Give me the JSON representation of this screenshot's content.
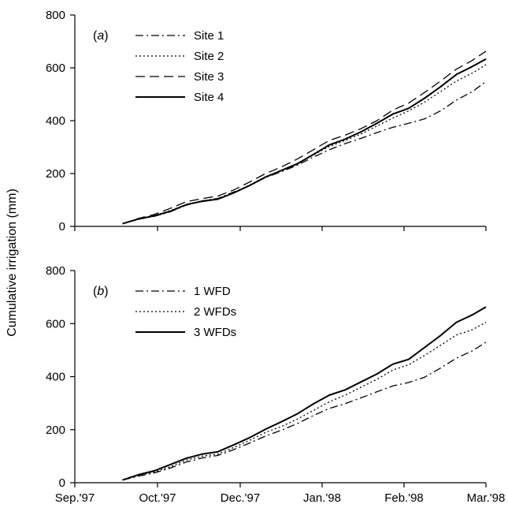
{
  "figure": {
    "ylabel": "Cumulative irrigation (mm)",
    "xtick_labels": [
      "Sep.'97",
      "Oct.'97",
      "Dec.'97",
      "Jan.'98",
      "Feb.'98",
      "Mar.'98"
    ]
  },
  "chart_data": [
    {
      "type": "line",
      "panel_label": "(a)",
      "xlabel": "",
      "ylabel": "Cumulative irrigation (mm)",
      "ylim": [
        0,
        800
      ],
      "yticks": [
        0,
        200,
        400,
        600,
        800
      ],
      "xlim": [
        "1997-09-01",
        "1998-03-01"
      ],
      "xtick_labels": [],
      "legend_position": "top-left",
      "x": [
        "1997-09-22",
        "1997-09-29",
        "1997-10-06",
        "1997-10-13",
        "1997-10-20",
        "1997-10-27",
        "1997-11-03",
        "1997-11-10",
        "1997-11-17",
        "1997-11-24",
        "1997-12-01",
        "1997-12-08",
        "1997-12-15",
        "1997-12-22",
        "1997-12-29",
        "1998-01-05",
        "1998-01-12",
        "1998-01-19",
        "1998-01-26",
        "1998-02-02",
        "1998-02-09",
        "1998-02-16",
        "1998-02-23",
        "1998-03-01"
      ],
      "series": [
        {
          "name": "Site 1",
          "dash": "dashdot",
          "values": [
            10,
            27,
            38,
            55,
            80,
            96,
            106,
            130,
            155,
            185,
            207,
            232,
            262,
            290,
            313,
            333,
            355,
            375,
            390,
            407,
            437,
            478,
            510,
            548
          ]
        },
        {
          "name": "Site 2",
          "dash": "dotted",
          "values": [
            10,
            27,
            40,
            60,
            82,
            97,
            105,
            127,
            157,
            188,
            210,
            238,
            270,
            302,
            325,
            350,
            380,
            410,
            437,
            470,
            510,
            550,
            580,
            612
          ]
        },
        {
          "name": "Site 3",
          "dash": "dashed",
          "values": [
            10,
            30,
            45,
            68,
            93,
            105,
            115,
            138,
            168,
            200,
            225,
            255,
            290,
            325,
            345,
            370,
            400,
            440,
            467,
            507,
            550,
            595,
            628,
            663
          ]
        },
        {
          "name": "Site 4",
          "dash": "solid",
          "values": [
            10,
            28,
            40,
            57,
            82,
            95,
            103,
            127,
            155,
            187,
            212,
            237,
            272,
            308,
            330,
            358,
            390,
            425,
            447,
            485,
            528,
            575,
            605,
            633
          ]
        }
      ]
    },
    {
      "type": "line",
      "panel_label": "(b)",
      "xlabel": "",
      "ylabel": "Cumulative irrigation (mm)",
      "ylim": [
        0,
        800
      ],
      "yticks": [
        0,
        200,
        400,
        600,
        800
      ],
      "xlim": [
        "1997-09-01",
        "1998-03-01"
      ],
      "xtick_labels": [
        "Sep.'97",
        "Oct.'97",
        "Dec.'97",
        "Jan.'98",
        "Feb.'98",
        "Mar.'98"
      ],
      "legend_position": "top-left",
      "x": [
        "1997-09-22",
        "1997-09-29",
        "1997-10-06",
        "1997-10-13",
        "1997-10-20",
        "1997-10-27",
        "1997-11-03",
        "1997-11-10",
        "1997-11-17",
        "1997-11-24",
        "1997-12-01",
        "1997-12-08",
        "1997-12-15",
        "1997-12-22",
        "1997-12-29",
        "1998-01-05",
        "1998-01-12",
        "1998-01-19",
        "1998-01-26",
        "1998-02-02",
        "1998-02-09",
        "1998-02-16",
        "1998-02-23",
        "1998-03-01"
      ],
      "series": [
        {
          "name": "1 WFD",
          "dash": "dashdot",
          "values": [
            10,
            25,
            37,
            55,
            78,
            93,
            103,
            125,
            150,
            176,
            198,
            223,
            253,
            280,
            298,
            320,
            343,
            365,
            378,
            398,
            432,
            470,
            497,
            530
          ]
        },
        {
          "name": "2 WFDs",
          "dash": "dotted",
          "values": [
            10,
            27,
            40,
            60,
            85,
            100,
            108,
            133,
            160,
            190,
            212,
            240,
            272,
            305,
            330,
            360,
            390,
            425,
            445,
            480,
            518,
            557,
            577,
            605
          ]
        },
        {
          "name": "3 WFDs",
          "dash": "solid",
          "values": [
            10,
            30,
            45,
            68,
            92,
            108,
            117,
            143,
            170,
            202,
            230,
            260,
            297,
            330,
            350,
            380,
            410,
            447,
            465,
            510,
            555,
            605,
            633,
            663
          ]
        }
      ]
    }
  ]
}
